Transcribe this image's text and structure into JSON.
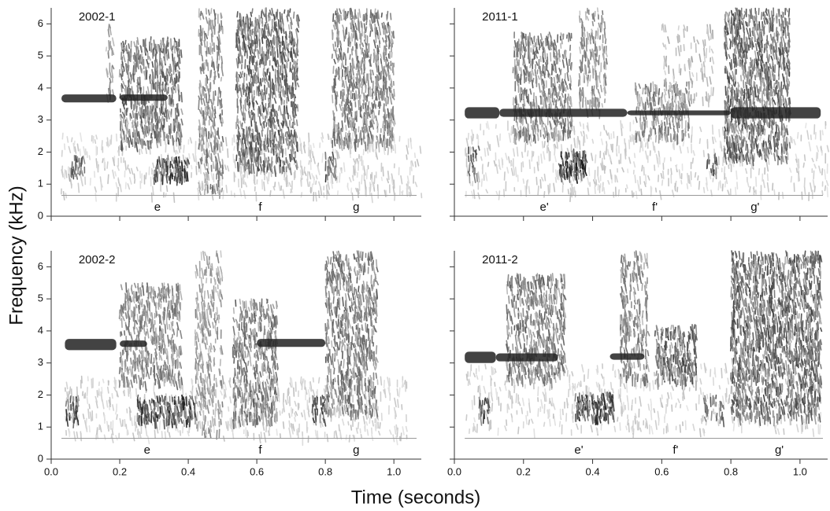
{
  "ylabel": "Frequency (kHz)",
  "xlabel": "Time (seconds)",
  "chart_data": [
    {
      "type": "spectrogram",
      "title": "2002-1",
      "syllables": [
        "e",
        "f",
        "g"
      ],
      "xlim": [
        0,
        1.08
      ],
      "ylim": [
        0,
        6.5
      ],
      "xticks": [
        0,
        0.2,
        0.4,
        0.6,
        0.8,
        1
      ],
      "yticks": [
        0,
        1,
        2,
        3,
        4,
        5,
        6
      ]
    },
    {
      "type": "spectrogram",
      "title": "2011-1",
      "syllables": [
        "e'",
        "f'",
        "g'"
      ],
      "xlim": [
        0,
        1.08
      ],
      "ylim": [
        0,
        6.5
      ],
      "xticks": [
        0,
        0.2,
        0.4,
        0.6,
        0.8,
        1
      ],
      "yticks": [
        0,
        1,
        2,
        3,
        4,
        5,
        6
      ]
    },
    {
      "type": "spectrogram",
      "title": "2002-2",
      "syllables": [
        "e",
        "f",
        "g"
      ],
      "xlim": [
        0,
        1.08
      ],
      "ylim": [
        0,
        6.5
      ],
      "xticks": [
        {
          "value": 0,
          "label": "0.0"
        },
        0.2,
        0.4,
        0.6,
        0.8,
        {
          "value": 1,
          "label": "1.0"
        }
      ],
      "yticks": [
        0,
        1,
        2,
        3,
        4,
        5,
        6
      ]
    },
    {
      "type": "spectrogram",
      "title": "2011-2",
      "syllables": [
        "e'",
        "f'",
        "g'"
      ],
      "xlim": [
        0,
        1.08
      ],
      "ylim": [
        0,
        6.5
      ],
      "xticks": [
        {
          "value": 0,
          "label": "0.0"
        },
        0.2,
        0.4,
        0.6,
        0.8,
        {
          "value": 1,
          "label": "1.0"
        }
      ],
      "yticks": [
        0,
        1,
        2,
        3,
        4,
        5,
        6
      ]
    }
  ]
}
